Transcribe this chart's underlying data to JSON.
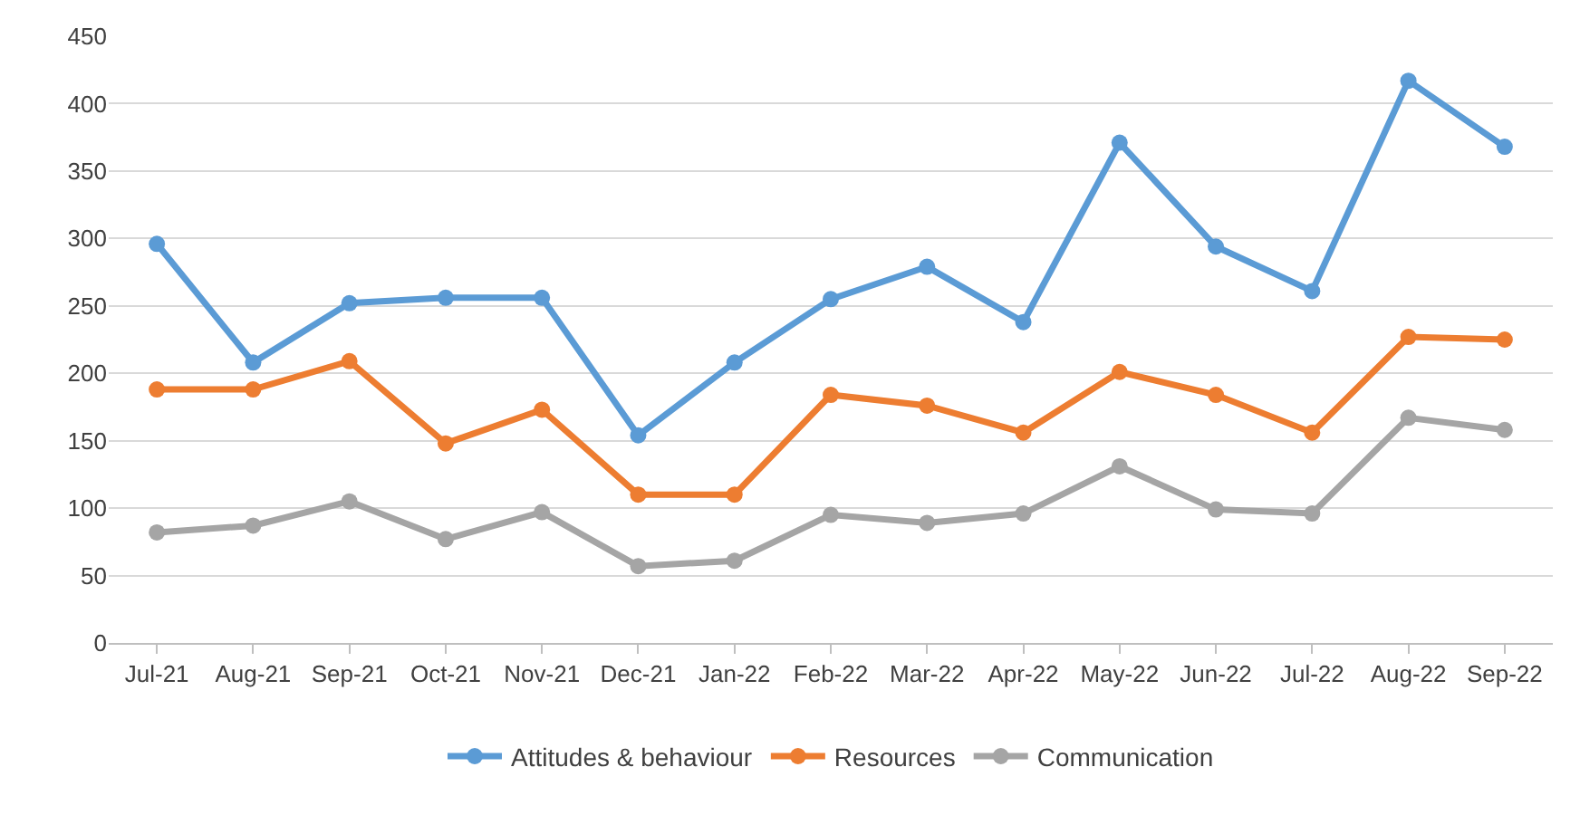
{
  "chart_data": {
    "type": "line",
    "categories": [
      "Jul-21",
      "Aug-21",
      "Sep-21",
      "Oct-21",
      "Nov-21",
      "Dec-21",
      "Jan-22",
      "Feb-22",
      "Mar-22",
      "Apr-22",
      "May-22",
      "Jun-22",
      "Jul-22",
      "Aug-22",
      "Sep-22"
    ],
    "series": [
      {
        "name": "Attitudes & behaviour",
        "color": "#5b9bd5",
        "values": [
          296,
          208,
          252,
          256,
          256,
          154,
          208,
          255,
          279,
          238,
          371,
          294,
          261,
          417,
          368
        ]
      },
      {
        "name": "Resources",
        "color": "#ed7d31",
        "values": [
          188,
          188,
          209,
          148,
          173,
          110,
          110,
          184,
          176,
          156,
          201,
          184,
          156,
          227,
          225
        ]
      },
      {
        "name": "Communication",
        "color": "#a5a5a5",
        "values": [
          82,
          87,
          105,
          77,
          97,
          57,
          61,
          95,
          89,
          96,
          131,
          99,
          96,
          167,
          158
        ]
      }
    ],
    "ylim": [
      0,
      450
    ],
    "yticks": [
      0,
      50,
      100,
      150,
      200,
      250,
      300,
      350,
      400,
      450
    ],
    "grid": "y",
    "legend": "bottom",
    "marker": "circle",
    "line_style": "solid"
  }
}
